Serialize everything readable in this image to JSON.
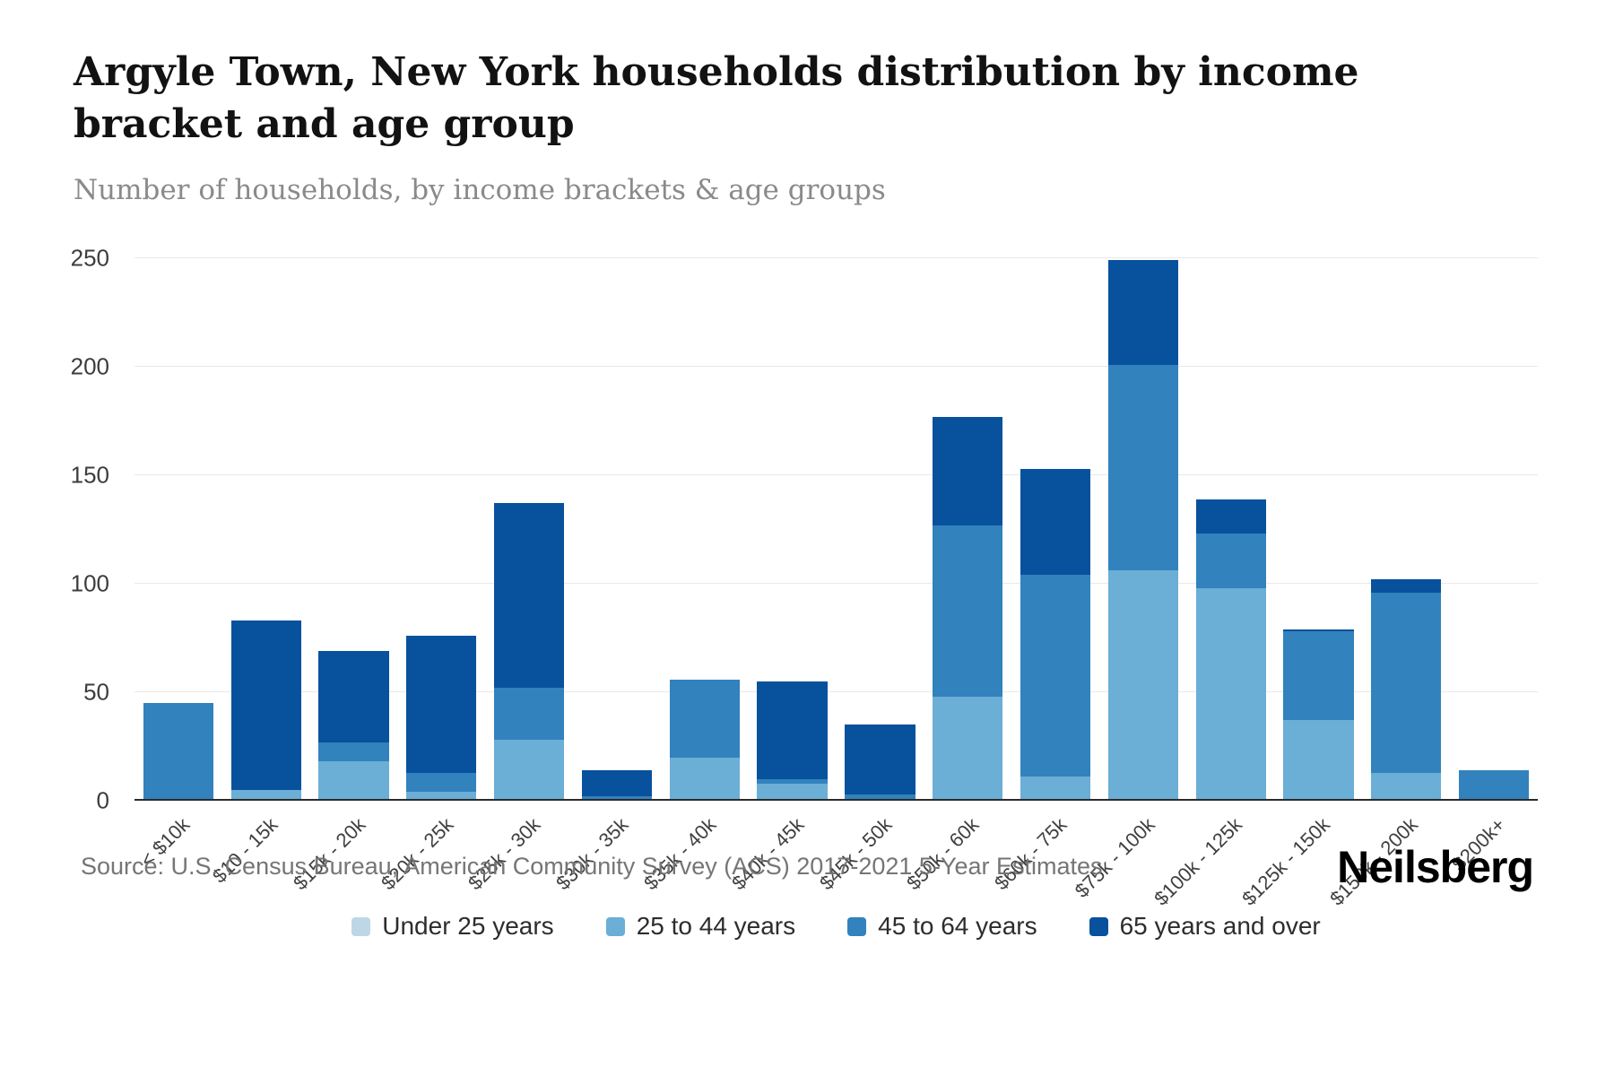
{
  "header": {
    "title": "Argyle Town, New York households distribution by income bracket and age group",
    "subtitle": "Number of households, by income brackets & age groups"
  },
  "footer": {
    "source": "Source: U.S. Census Bureau, American Community Survey (ACS) 2017-2021 5-Year Estimates",
    "brand": "Neilsberg"
  },
  "chart_data": {
    "type": "bar",
    "stacked": true,
    "title": "Argyle Town, New York households distribution by income bracket and age group",
    "subtitle": "Number of households, by income brackets & age groups",
    "xlabel": "",
    "ylabel": "",
    "ylim": [
      0,
      250
    ],
    "yticks": [
      0,
      50,
      100,
      150,
      200,
      250
    ],
    "grid": true,
    "legend_position": "bottom",
    "categories": [
      "< $10k",
      "$10 - 15k",
      "$15k - 20k",
      "$20k - 25k",
      "$25k - 30k",
      "$30k - 35k",
      "$35k - 40k",
      "$40k - 45k",
      "$45k - 50k",
      "$50k - 60k",
      "$60k - 75k",
      "$75k - 100k",
      "$100k - 125k",
      "$125k - 150k",
      "$150k - 200k",
      "$200k+"
    ],
    "series": [
      {
        "name": "Under 25 years",
        "color": "#bdd7e7",
        "values": [
          0,
          0,
          0,
          0,
          0,
          0,
          0,
          0,
          0,
          0,
          0,
          0,
          0,
          0,
          0,
          0
        ]
      },
      {
        "name": "25 to 44 years",
        "color": "#6baed6",
        "values": [
          0,
          5,
          18,
          4,
          28,
          0,
          20,
          8,
          0,
          48,
          11,
          106,
          98,
          37,
          13,
          0
        ]
      },
      {
        "name": "45 to 64 years",
        "color": "#3182bd",
        "values": [
          45,
          0,
          9,
          9,
          24,
          2,
          36,
          2,
          3,
          79,
          93,
          95,
          25,
          41,
          83,
          14
        ]
      },
      {
        "name": "65 years and over",
        "color": "#08519c",
        "values": [
          0,
          78,
          42,
          63,
          85,
          12,
          0,
          45,
          32,
          50,
          49,
          48,
          16,
          1,
          6,
          0
        ]
      }
    ]
  }
}
